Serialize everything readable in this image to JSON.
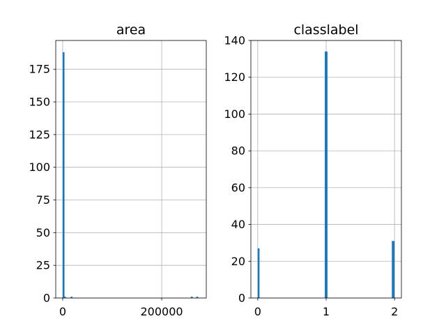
{
  "chart_data": [
    {
      "type": "bar",
      "title": "area",
      "xlabel": "",
      "ylabel": "",
      "xlim": [
        -14000,
        290000
      ],
      "ylim": [
        0,
        197
      ],
      "xticks": [
        0,
        200000
      ],
      "xtick_labels": [
        "0",
        "200000"
      ],
      "yticks": [
        0,
        25,
        50,
        75,
        100,
        125,
        150,
        175
      ],
      "ytick_labels": [
        "0",
        "25",
        "50",
        "75",
        "100",
        "125",
        "150",
        "175"
      ],
      "grid": true,
      "bar_color": "#1f77b4",
      "bars": [
        {
          "x0": 0,
          "x1": 2700,
          "count": 188
        },
        {
          "x0": 2700,
          "x1": 5400,
          "count": 1
        },
        {
          "x0": 16200,
          "x1": 18900,
          "count": 1
        },
        {
          "x0": 259000,
          "x1": 261700,
          "count": 1
        },
        {
          "x0": 269800,
          "x1": 272500,
          "count": 1
        }
      ]
    },
    {
      "type": "bar",
      "title": "classlabel",
      "xlabel": "",
      "ylabel": "",
      "xlim": [
        -0.1,
        2.1
      ],
      "ylim": [
        0,
        140
      ],
      "xticks": [
        0,
        1,
        2
      ],
      "xtick_labels": [
        "0",
        "1",
        "2"
      ],
      "yticks": [
        0,
        20,
        40,
        60,
        80,
        100,
        120,
        140
      ],
      "ytick_labels": [
        "0",
        "20",
        "40",
        "60",
        "80",
        "100",
        "120",
        "140"
      ],
      "grid": true,
      "bar_color": "#1f77b4",
      "bars": [
        {
          "x0": 0.0,
          "x1": 0.02,
          "count": 27
        },
        {
          "x0": 0.98,
          "x1": 1.02,
          "count": 134
        },
        {
          "x0": 1.96,
          "x1": 2.0,
          "count": 31
        }
      ]
    }
  ]
}
